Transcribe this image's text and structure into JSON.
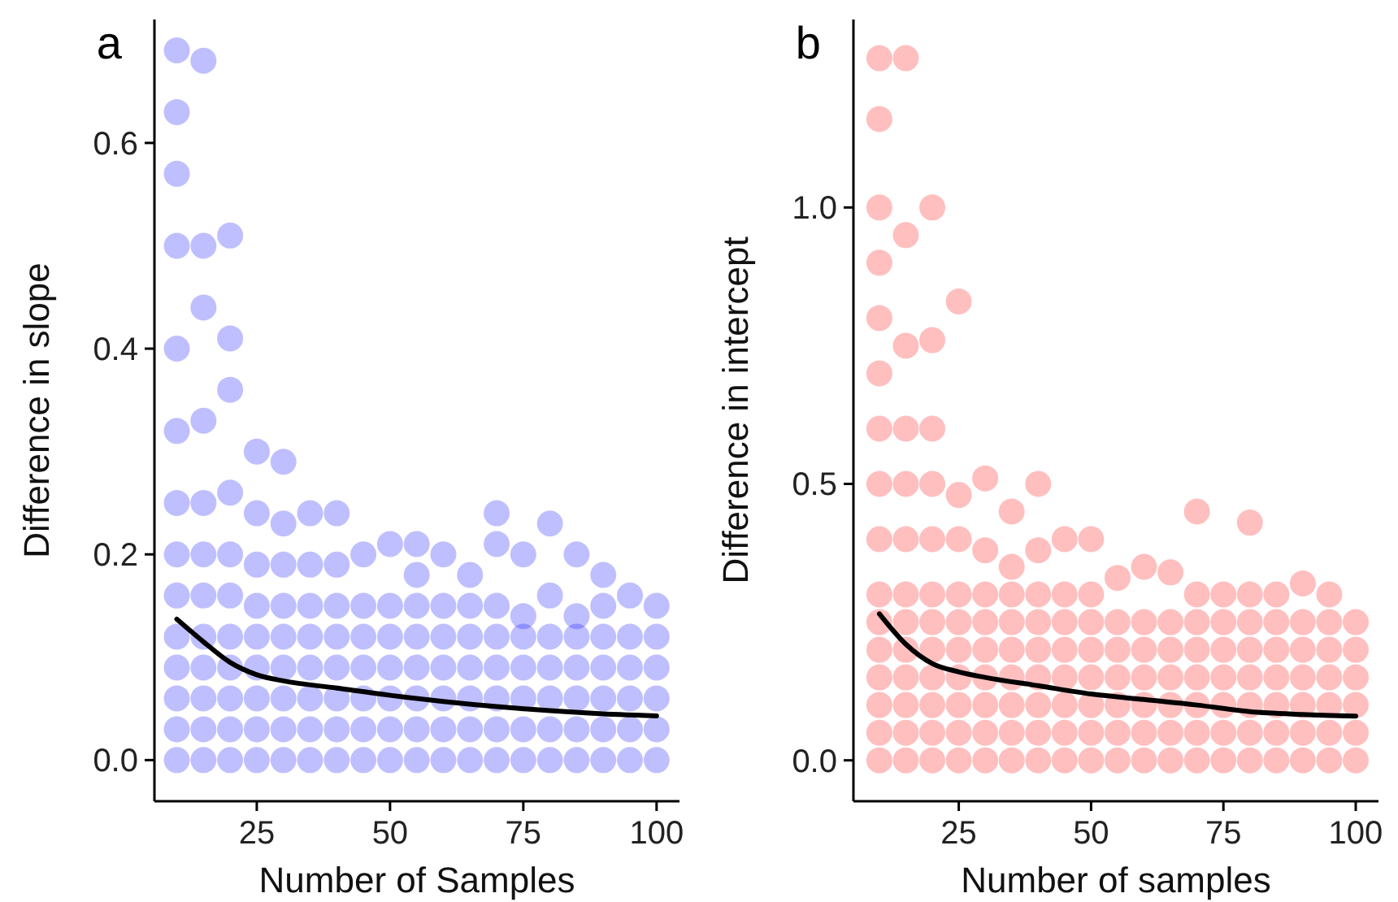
{
  "chart_data": [
    {
      "type": "scatter",
      "title": "a",
      "xlabel": "Number of Samples",
      "ylabel": "Difference in slope",
      "xlim": [
        5.8,
        104.3
      ],
      "ylim": [
        -0.04,
        0.72
      ],
      "xticks": [
        25,
        50,
        75,
        100
      ],
      "yticks": [
        {
          "value": 0,
          "label": "0.0"
        },
        {
          "value": 0.2,
          "label": "0.2"
        },
        {
          "value": 0.4,
          "label": "0.4"
        },
        {
          "value": 0.6,
          "label": "0.6"
        }
      ],
      "grid": false,
      "marker": "circle",
      "series": [
        {
          "color": "#0000ff",
          "x": [
            10,
            10,
            10,
            10,
            10,
            10,
            10,
            10,
            10,
            10,
            10,
            10,
            10,
            10,
            15,
            15,
            15,
            15,
            15,
            15,
            15,
            15,
            15,
            15,
            15,
            15,
            20,
            20,
            20,
            20,
            20,
            20,
            20,
            20,
            20,
            20,
            20,
            25,
            25,
            25,
            25,
            25,
            25,
            25,
            25,
            25,
            30,
            30,
            30,
            30,
            30,
            30,
            30,
            30,
            30,
            35,
            35,
            35,
            35,
            35,
            35,
            35,
            35,
            40,
            40,
            40,
            40,
            40,
            40,
            40,
            40,
            45,
            45,
            45,
            45,
            45,
            45,
            45,
            50,
            50,
            50,
            50,
            50,
            50,
            50,
            55,
            55,
            55,
            55,
            55,
            55,
            55,
            55,
            60,
            60,
            60,
            60,
            60,
            60,
            60,
            65,
            65,
            65,
            65,
            65,
            65,
            65,
            70,
            70,
            70,
            70,
            70,
            70,
            70,
            70,
            75,
            75,
            75,
            75,
            75,
            75,
            75,
            80,
            80,
            80,
            80,
            80,
            80,
            80,
            85,
            85,
            85,
            85,
            85,
            85,
            85,
            90,
            90,
            90,
            90,
            90,
            90,
            90,
            95,
            95,
            95,
            95,
            95,
            95,
            100,
            100,
            100,
            100,
            100,
            100
          ],
          "values": [
            0,
            0.03,
            0.06,
            0.09,
            0.12,
            0.16,
            0.2,
            0.25,
            0.32,
            0.4,
            0.5,
            0.57,
            0.63,
            0.69,
            0,
            0.03,
            0.06,
            0.09,
            0.12,
            0.16,
            0.2,
            0.25,
            0.33,
            0.44,
            0.5,
            0.68,
            0,
            0.03,
            0.06,
            0.09,
            0.12,
            0.16,
            0.2,
            0.26,
            0.36,
            0.41,
            0.51,
            0,
            0.03,
            0.06,
            0.09,
            0.12,
            0.15,
            0.19,
            0.24,
            0.3,
            0,
            0.03,
            0.06,
            0.09,
            0.12,
            0.15,
            0.19,
            0.23,
            0.29,
            0,
            0.03,
            0.06,
            0.09,
            0.12,
            0.15,
            0.19,
            0.24,
            0,
            0.03,
            0.06,
            0.09,
            0.12,
            0.15,
            0.19,
            0.24,
            0,
            0.03,
            0.06,
            0.09,
            0.12,
            0.15,
            0.2,
            0,
            0.03,
            0.06,
            0.09,
            0.12,
            0.15,
            0.21,
            0,
            0.03,
            0.06,
            0.09,
            0.12,
            0.15,
            0.18,
            0.21,
            0,
            0.03,
            0.06,
            0.09,
            0.12,
            0.15,
            0.2,
            0,
            0.03,
            0.06,
            0.09,
            0.12,
            0.15,
            0.18,
            0,
            0.03,
            0.06,
            0.09,
            0.12,
            0.15,
            0.21,
            0.24,
            0,
            0.03,
            0.06,
            0.09,
            0.12,
            0.14,
            0.2,
            0,
            0.03,
            0.06,
            0.09,
            0.12,
            0.16,
            0.23,
            0,
            0.03,
            0.06,
            0.09,
            0.12,
            0.14,
            0.2,
            0,
            0.03,
            0.06,
            0.09,
            0.12,
            0.15,
            0.18,
            0,
            0.03,
            0.06,
            0.09,
            0.12,
            0.16,
            0,
            0.03,
            0.06,
            0.09,
            0.12,
            0.15
          ]
        },
        {
          "type": "line",
          "color": "#000000",
          "marker": "none",
          "x": [
            10,
            15,
            20,
            25,
            30,
            40,
            50,
            60,
            70,
            80,
            90,
            100
          ],
          "values": [
            0.137,
            0.115,
            0.095,
            0.083,
            0.077,
            0.07,
            0.063,
            0.057,
            0.052,
            0.048,
            0.045,
            0.043
          ]
        }
      ]
    },
    {
      "type": "scatter",
      "title": "b",
      "xlabel": "Number of samples",
      "ylabel": "Difference in intercept",
      "xlim": [
        5.1,
        104.3
      ],
      "ylim": [
        -0.074,
        1.34
      ],
      "xticks": [
        25,
        50,
        75,
        100
      ],
      "yticks": [
        {
          "value": 0,
          "label": "0.0"
        },
        {
          "value": 0.5,
          "label": "0.5"
        },
        {
          "value": 1,
          "label": "1.0"
        }
      ],
      "grid": false,
      "marker": "circle",
      "series": [
        {
          "color": "#ff0000",
          "x": [
            10,
            10,
            10,
            10,
            10,
            10,
            10,
            10,
            10,
            10,
            10,
            10,
            10,
            10,
            10,
            10,
            15,
            15,
            15,
            15,
            15,
            15,
            15,
            15,
            15,
            15,
            15,
            15,
            15,
            20,
            20,
            20,
            20,
            20,
            20,
            20,
            20,
            20,
            20,
            20,
            20,
            25,
            25,
            25,
            25,
            25,
            25,
            25,
            25,
            25,
            25,
            30,
            30,
            30,
            30,
            30,
            30,
            30,
            30,
            30,
            35,
            35,
            35,
            35,
            35,
            35,
            35,
            35,
            35,
            40,
            40,
            40,
            40,
            40,
            40,
            40,
            40,
            40,
            45,
            45,
            45,
            45,
            45,
            45,
            45,
            45,
            50,
            50,
            50,
            50,
            50,
            50,
            50,
            50,
            55,
            55,
            55,
            55,
            55,
            55,
            55,
            60,
            60,
            60,
            60,
            60,
            60,
            60,
            65,
            65,
            65,
            65,
            65,
            65,
            65,
            70,
            70,
            70,
            70,
            70,
            70,
            70,
            70,
            75,
            75,
            75,
            75,
            75,
            75,
            75,
            80,
            80,
            80,
            80,
            80,
            80,
            80,
            80,
            85,
            85,
            85,
            85,
            85,
            85,
            85,
            90,
            90,
            90,
            90,
            90,
            90,
            90,
            95,
            95,
            95,
            95,
            95,
            95,
            95,
            100,
            100,
            100,
            100,
            100,
            100
          ],
          "values": [
            0,
            0.05,
            0.1,
            0.15,
            0.2,
            0.25,
            0.3,
            0.4,
            0.5,
            0.6,
            0.7,
            0.8,
            0.9,
            1.0,
            1.16,
            1.27,
            0,
            0.05,
            0.1,
            0.15,
            0.2,
            0.25,
            0.3,
            0.4,
            0.5,
            0.6,
            0.75,
            0.95,
            1.27,
            0,
            0.05,
            0.1,
            0.15,
            0.2,
            0.25,
            0.3,
            0.4,
            0.5,
            0.6,
            0.76,
            1.0,
            0,
            0.05,
            0.1,
            0.15,
            0.2,
            0.25,
            0.3,
            0.4,
            0.48,
            0.83,
            0,
            0.05,
            0.1,
            0.15,
            0.2,
            0.25,
            0.3,
            0.38,
            0.51,
            0,
            0.05,
            0.1,
            0.15,
            0.2,
            0.25,
            0.3,
            0.35,
            0.45,
            0,
            0.05,
            0.1,
            0.15,
            0.2,
            0.25,
            0.3,
            0.38,
            0.5,
            0,
            0.05,
            0.1,
            0.15,
            0.2,
            0.25,
            0.3,
            0.4,
            0,
            0.05,
            0.1,
            0.15,
            0.2,
            0.25,
            0.3,
            0.4,
            0,
            0.05,
            0.1,
            0.15,
            0.2,
            0.25,
            0.33,
            0,
            0.05,
            0.1,
            0.15,
            0.2,
            0.25,
            0.35,
            0,
            0.05,
            0.1,
            0.15,
            0.2,
            0.25,
            0.34,
            0,
            0.05,
            0.1,
            0.15,
            0.2,
            0.25,
            0.3,
            0.45,
            0,
            0.05,
            0.1,
            0.15,
            0.2,
            0.25,
            0.3,
            0,
            0.05,
            0.1,
            0.15,
            0.2,
            0.25,
            0.3,
            0.43,
            0,
            0.05,
            0.1,
            0.15,
            0.2,
            0.25,
            0.3,
            0,
            0.05,
            0.1,
            0.15,
            0.2,
            0.25,
            0.32,
            0,
            0.05,
            0.1,
            0.15,
            0.2,
            0.25,
            0.3,
            0,
            0.05,
            0.1,
            0.15,
            0.2,
            0.25
          ]
        },
        {
          "type": "line",
          "color": "#000000",
          "marker": "none",
          "x": [
            10,
            15,
            20,
            25,
            30,
            40,
            50,
            60,
            70,
            80,
            90,
            100
          ],
          "values": [
            0.265,
            0.21,
            0.175,
            0.16,
            0.15,
            0.135,
            0.12,
            0.11,
            0.1,
            0.088,
            0.083,
            0.08
          ]
        }
      ]
    }
  ]
}
